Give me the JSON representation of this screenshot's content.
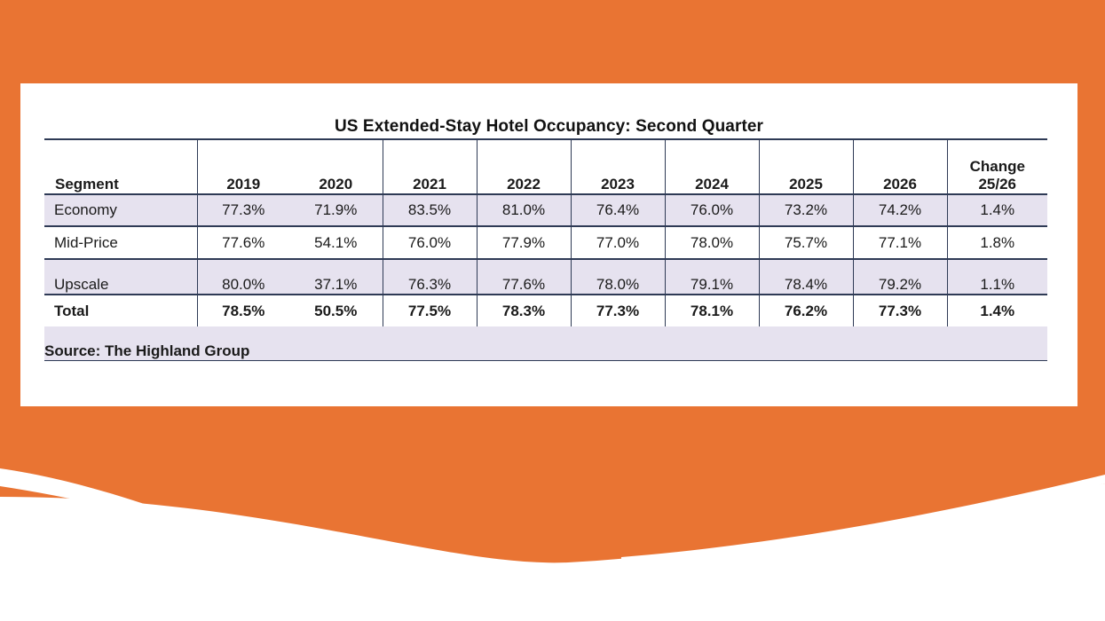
{
  "colors": {
    "background": "#e97433",
    "card": "#ffffff",
    "band": "#e6e2ef",
    "rule": "#2e3a55"
  },
  "table": {
    "title": "US Extended-Stay Hotel Occupancy: Second Quarter",
    "columns": {
      "segment": "Segment",
      "years": [
        "2019",
        "2020",
        "2021",
        "2022",
        "2023",
        "2024",
        "2025",
        "2026"
      ],
      "change_line1": "Change",
      "change_line2": "25/26"
    },
    "rows": [
      {
        "segment": "Economy",
        "values": [
          "77.3%",
          "71.9%",
          "83.5%",
          "81.0%",
          "76.4%",
          "76.0%",
          "73.2%",
          "74.2%"
        ],
        "change": "1.4%"
      },
      {
        "segment": "Mid-Price",
        "values": [
          "77.6%",
          "54.1%",
          "76.0%",
          "77.9%",
          "77.0%",
          "78.0%",
          "75.7%",
          "77.1%"
        ],
        "change": "1.8%"
      },
      {
        "segment": "Upscale",
        "values": [
          "80.0%",
          "37.1%",
          "76.3%",
          "77.6%",
          "78.0%",
          "79.1%",
          "78.4%",
          "79.2%"
        ],
        "change": "1.1%"
      },
      {
        "segment": "Total",
        "values": [
          "78.5%",
          "50.5%",
          "77.5%",
          "78.3%",
          "77.3%",
          "78.1%",
          "76.2%",
          "77.3%"
        ],
        "change": "1.4%"
      }
    ],
    "source": "Source: The Highland Group"
  }
}
